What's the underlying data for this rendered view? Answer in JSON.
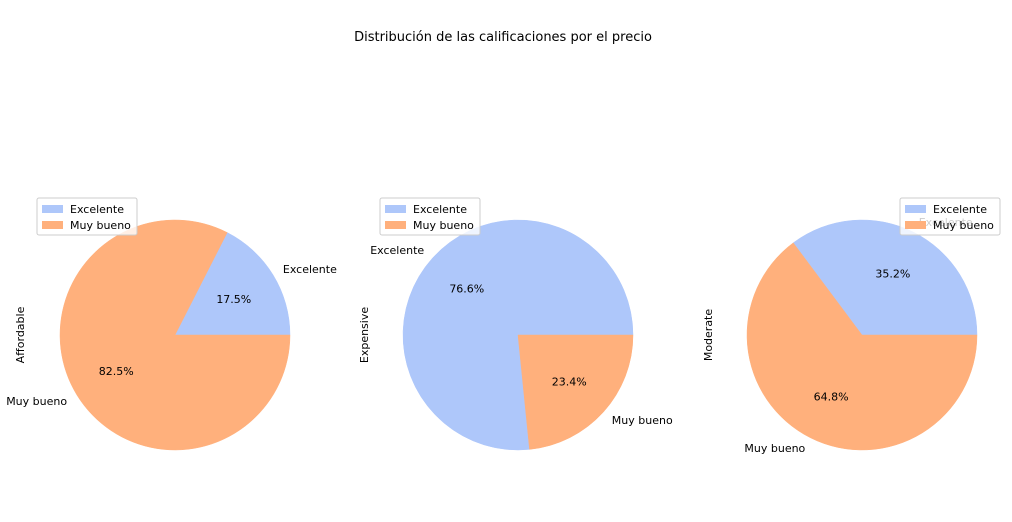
{
  "title": "Distribución de las calificaciones por el precio",
  "colors": {
    "Excelente": "#aec7fa",
    "Muy bueno": "#ffb07c"
  },
  "chart_data": [
    {
      "type": "pie",
      "ylabel": "Affordable",
      "slices": [
        {
          "label": "Excelente",
          "value": 17.5,
          "pct_label": "17.5%"
        },
        {
          "label": "Muy bueno",
          "value": 82.5,
          "pct_label": "82.5%"
        }
      ],
      "legend": {
        "position": "upper-left",
        "entries": [
          "Excelente",
          "Muy bueno"
        ]
      }
    },
    {
      "type": "pie",
      "ylabel": "Expensive",
      "slices": [
        {
          "label": "Excelente",
          "value": 76.6,
          "pct_label": "76.6%"
        },
        {
          "label": "Muy bueno",
          "value": 23.4,
          "pct_label": "23.4%"
        }
      ],
      "legend": {
        "position": "upper-left",
        "entries": [
          "Excelente",
          "Muy bueno"
        ]
      }
    },
    {
      "type": "pie",
      "ylabel": "Moderate",
      "slices": [
        {
          "label": "Excelente",
          "value": 35.2,
          "pct_label": "35.2%"
        },
        {
          "label": "Muy bueno",
          "value": 64.8,
          "pct_label": "64.8%"
        }
      ],
      "legend": {
        "position": "upper-right",
        "entries": [
          "Excelente",
          "Muy bueno"
        ]
      }
    }
  ]
}
